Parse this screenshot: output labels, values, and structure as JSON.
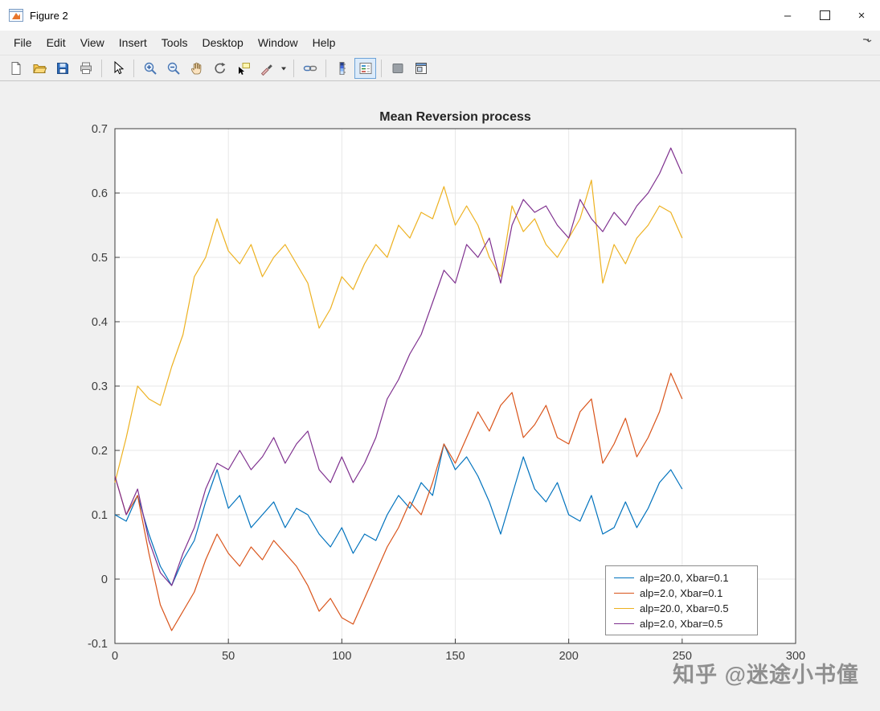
{
  "window": {
    "title": "Figure 2",
    "controls": {
      "minimize": "–",
      "close": "×"
    }
  },
  "menubar": {
    "items": [
      "File",
      "Edit",
      "View",
      "Insert",
      "Tools",
      "Desktop",
      "Window",
      "Help"
    ]
  },
  "toolbar": {
    "buttons": [
      "new-figure",
      "open-file",
      "save-figure",
      "print-figure",
      "edit-plot",
      "zoom-in",
      "zoom-out",
      "pan",
      "rotate-3d",
      "data-cursor",
      "brush-data",
      "brush-dropdown",
      "link-plot",
      "insert-colorbar",
      "insert-legend",
      "hide-plot-tools",
      "dock-figure"
    ]
  },
  "watermark": "知乎 @迷途小书僮",
  "chart_data": {
    "type": "line",
    "title": "Mean Reversion process",
    "xlabel": "",
    "ylabel": "",
    "xlim": [
      0,
      300
    ],
    "ylim": [
      -0.1,
      0.7
    ],
    "x_ticks": [
      0,
      50,
      100,
      150,
      200,
      250,
      300
    ],
    "y_ticks": [
      -0.1,
      0,
      0.1,
      0.2,
      0.3,
      0.4,
      0.5,
      0.6,
      0.7
    ],
    "grid": true,
    "legend_position": "lower right",
    "x_step": 5,
    "series": [
      {
        "name": "alp=20.0, Xbar=0.1",
        "color": "#0072BD",
        "values": [
          0.1,
          0.09,
          0.13,
          0.07,
          0.02,
          -0.01,
          0.03,
          0.06,
          0.12,
          0.17,
          0.11,
          0.13,
          0.08,
          0.1,
          0.12,
          0.08,
          0.11,
          0.1,
          0.07,
          0.05,
          0.08,
          0.04,
          0.07,
          0.06,
          0.1,
          0.13,
          0.11,
          0.15,
          0.13,
          0.21,
          0.17,
          0.19,
          0.16,
          0.12,
          0.07,
          0.13,
          0.19,
          0.14,
          0.12,
          0.15,
          0.1,
          0.09,
          0.13,
          0.07,
          0.08,
          0.12,
          0.08,
          0.11,
          0.15,
          0.17,
          0.14
        ]
      },
      {
        "name": "alp=2.0, Xbar=0.1",
        "color": "#D95319",
        "values": [
          0.16,
          0.1,
          0.13,
          0.04,
          -0.04,
          -0.08,
          -0.05,
          -0.02,
          0.03,
          0.07,
          0.04,
          0.02,
          0.05,
          0.03,
          0.06,
          0.04,
          0.02,
          -0.01,
          -0.05,
          -0.03,
          -0.06,
          -0.07,
          -0.03,
          0.01,
          0.05,
          0.08,
          0.12,
          0.1,
          0.15,
          0.21,
          0.18,
          0.22,
          0.26,
          0.23,
          0.27,
          0.29,
          0.22,
          0.24,
          0.27,
          0.22,
          0.21,
          0.26,
          0.28,
          0.18,
          0.21,
          0.25,
          0.19,
          0.22,
          0.26,
          0.32,
          0.28
        ]
      },
      {
        "name": "alp=20.0, Xbar=0.5",
        "color": "#EDB120",
        "values": [
          0.15,
          0.22,
          0.3,
          0.28,
          0.27,
          0.33,
          0.38,
          0.47,
          0.5,
          0.56,
          0.51,
          0.49,
          0.52,
          0.47,
          0.5,
          0.52,
          0.49,
          0.46,
          0.39,
          0.42,
          0.47,
          0.45,
          0.49,
          0.52,
          0.5,
          0.55,
          0.53,
          0.57,
          0.56,
          0.61,
          0.55,
          0.58,
          0.55,
          0.5,
          0.47,
          0.58,
          0.54,
          0.56,
          0.52,
          0.5,
          0.53,
          0.56,
          0.62,
          0.46,
          0.52,
          0.49,
          0.53,
          0.55,
          0.58,
          0.57,
          0.53
        ]
      },
      {
        "name": "alp=2.0, Xbar=0.5",
        "color": "#7E2F8E",
        "values": [
          0.16,
          0.1,
          0.14,
          0.06,
          0.01,
          -0.01,
          0.04,
          0.08,
          0.14,
          0.18,
          0.17,
          0.2,
          0.17,
          0.19,
          0.22,
          0.18,
          0.21,
          0.23,
          0.17,
          0.15,
          0.19,
          0.15,
          0.18,
          0.22,
          0.28,
          0.31,
          0.35,
          0.38,
          0.43,
          0.48,
          0.46,
          0.52,
          0.5,
          0.53,
          0.46,
          0.55,
          0.59,
          0.57,
          0.58,
          0.55,
          0.53,
          0.59,
          0.56,
          0.54,
          0.57,
          0.55,
          0.58,
          0.6,
          0.63,
          0.67,
          0.63
        ]
      }
    ]
  }
}
